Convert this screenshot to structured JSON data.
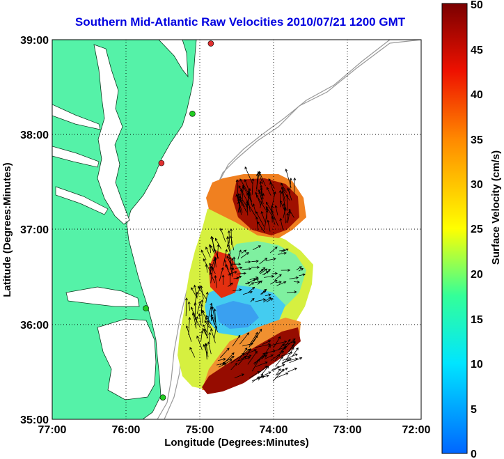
{
  "title": "Southern Mid-Atlantic Raw Velocities 2010/07/21 1200 GMT",
  "xlabel": "Longitude (Degrees:Minutes)",
  "ylabel": "Latitude (Degrees:Minutes)",
  "x_ticks": [
    "77:00",
    "76:00",
    "75:00",
    "74:00",
    "73:00",
    "72:00"
  ],
  "y_ticks": [
    "39:00",
    "38:00",
    "37:00",
    "36:00",
    "35:00"
  ],
  "colorbar": {
    "label": "Surface Velocity (cm/s)",
    "ticks": [
      "0",
      "5",
      "10",
      "15",
      "20",
      "25",
      "30",
      "35",
      "40",
      "45",
      "50"
    ],
    "min": 0,
    "max": 50
  },
  "colors": {
    "land": "#55f2a8",
    "water": "#ffffff",
    "title": "#0000e0",
    "bathymetry": "#999999",
    "grid": "#000000"
  },
  "map": {
    "lon_range": [
      -77,
      -72
    ],
    "lat_range": [
      35,
      39
    ],
    "stations": [
      {
        "lon": -74.85,
        "lat": 38.96,
        "color": "#e03030"
      },
      {
        "lon": -75.1,
        "lat": 38.22,
        "color": "#22cc22"
      },
      {
        "lon": -75.52,
        "lat": 37.7,
        "color": "#e03030"
      },
      {
        "lon": -75.73,
        "lat": 36.17,
        "color": "#22cc22"
      },
      {
        "lon": -75.5,
        "lat": 35.23,
        "color": "#22cc22"
      }
    ]
  }
}
